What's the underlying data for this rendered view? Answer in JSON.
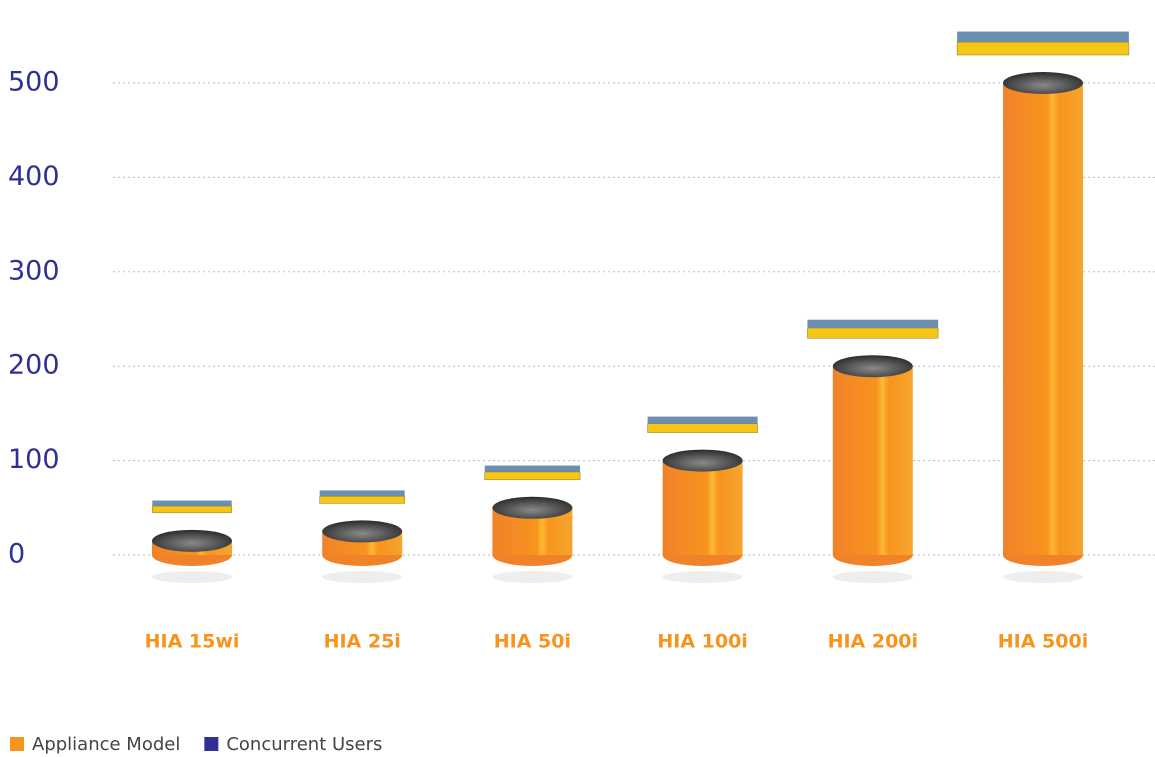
{
  "chart_data": {
    "type": "cylinder",
    "categories": [
      "HIA 15wi",
      "HIA 25i",
      "HIA 50i",
      "HIA 100i",
      "HIA 200i",
      "HIA 500i"
    ],
    "values": [
      15,
      25,
      50,
      100,
      200,
      500
    ],
    "color": "#f7941d",
    "ylim": [
      0,
      500
    ],
    "yticks": [
      0,
      100,
      200,
      300,
      400,
      500
    ],
    "grid": true,
    "legend": [
      {
        "label": "Appliance Model",
        "color": "#f7941d"
      },
      {
        "label": "Concurrent Users",
        "color": "#2e3192"
      }
    ]
  }
}
